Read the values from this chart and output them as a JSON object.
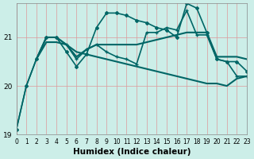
{
  "xlabel": "Humidex (Indice chaleur)",
  "ylabel": "",
  "background_color": "#cceee8",
  "grid_color": "#dd9999",
  "line_color": "#006666",
  "xlim": [
    0,
    23
  ],
  "ylim": [
    19,
    21.7
  ],
  "yticks": [
    19,
    20,
    21
  ],
  "xticks": [
    0,
    1,
    2,
    3,
    4,
    5,
    6,
    7,
    8,
    9,
    10,
    11,
    12,
    13,
    14,
    15,
    16,
    17,
    18,
    19,
    20,
    21,
    22,
    23
  ],
  "series": [
    {
      "x": [
        0,
        1,
        2,
        3,
        4,
        5,
        6,
        7,
        8,
        9,
        10,
        11,
        12,
        13,
        14,
        15,
        16,
        17,
        18,
        19,
        20,
        21,
        22,
        23
      ],
      "y": [
        19.1,
        20.0,
        20.55,
        21.0,
        21.0,
        20.85,
        20.55,
        20.75,
        20.85,
        20.7,
        20.6,
        20.55,
        20.45,
        21.1,
        21.1,
        21.2,
        21.15,
        21.55,
        21.05,
        21.05,
        20.55,
        20.5,
        20.2,
        20.2
      ],
      "marker": "+",
      "markersize": 3,
      "linewidth": 1.2
    },
    {
      "x": [
        0,
        1,
        2,
        3,
        4,
        5,
        6,
        7,
        8,
        9,
        10,
        11,
        12,
        13,
        14,
        15,
        16,
        17,
        18,
        19,
        20,
        21,
        22,
        23
      ],
      "y": [
        19.1,
        20.0,
        20.55,
        21.0,
        21.0,
        20.7,
        20.4,
        20.65,
        21.2,
        21.5,
        21.5,
        21.45,
        21.35,
        21.3,
        21.2,
        21.15,
        21.0,
        21.7,
        21.6,
        21.1,
        20.55,
        20.5,
        20.5,
        20.3
      ],
      "marker": "D",
      "markersize": 2,
      "linewidth": 1.2
    },
    {
      "x": [
        2,
        3,
        4,
        5,
        6,
        7,
        8,
        9,
        10,
        11,
        12,
        13,
        14,
        15,
        16,
        17,
        18,
        19,
        20,
        21,
        22,
        23
      ],
      "y": [
        20.55,
        21.0,
        21.0,
        20.85,
        20.6,
        20.75,
        20.85,
        20.85,
        20.85,
        20.85,
        20.85,
        20.9,
        20.95,
        21.0,
        21.05,
        21.1,
        21.1,
        21.1,
        20.6,
        20.6,
        20.6,
        20.55
      ],
      "marker": null,
      "markersize": 0,
      "linewidth": 1.5
    },
    {
      "x": [
        2,
        3,
        4,
        5,
        6,
        7,
        8,
        9,
        10,
        11,
        12,
        13,
        14,
        15,
        16,
        17,
        18,
        19,
        20,
        21,
        22,
        23
      ],
      "y": [
        20.55,
        20.9,
        20.9,
        20.85,
        20.7,
        20.65,
        20.6,
        20.55,
        20.5,
        20.45,
        20.4,
        20.35,
        20.3,
        20.25,
        20.2,
        20.15,
        20.1,
        20.05,
        20.05,
        20.0,
        20.15,
        20.2
      ],
      "marker": null,
      "markersize": 0,
      "linewidth": 1.5
    }
  ]
}
